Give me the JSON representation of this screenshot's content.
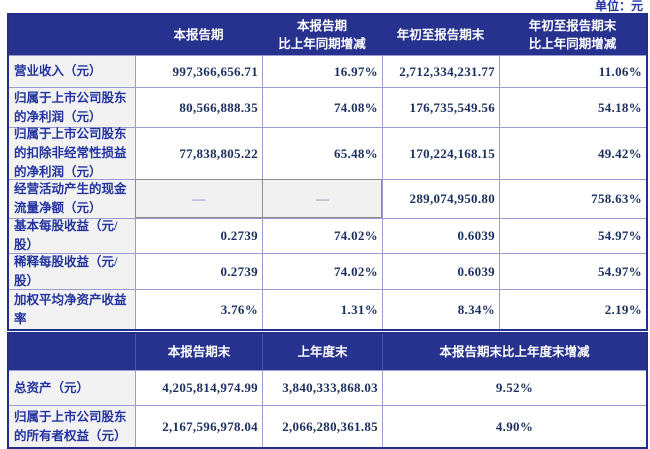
{
  "unit_label": "单位：元",
  "colors": {
    "header_bg": "#26328e",
    "header_text": "#ffffff",
    "label_bg": "#f2f2f2",
    "label_text": "#2334a0",
    "value_text": "#1b2f5e",
    "inner_border": "#9b9bd0",
    "outer_border": "#23308a",
    "muted_cell_bg": "#f1f1f1",
    "muted_dash": "#9094ce"
  },
  "table1": {
    "headers": {
      "col1": "",
      "col2": "本报告期",
      "col3": "本报告期\n比上年同期增减",
      "col4": "年初至报告期末",
      "col5": "年初至报告期末\n比上年同期增减"
    },
    "rows": [
      {
        "label": "营业收入（元）",
        "v1": "997,366,656.71",
        "v2": "16.97%",
        "v3": "2,712,334,231.77",
        "v4": "11.06%"
      },
      {
        "label": "归属于上市公司股东的净利润（元）",
        "v1": "80,566,888.35",
        "v2": "74.08%",
        "v3": "176,735,549.56",
        "v4": "54.18%"
      },
      {
        "label": "归属于上市公司股东的扣除非经常性损益的净利润（元）",
        "v1": "77,838,805.22",
        "v2": "65.48%",
        "v3": "170,224,168.15",
        "v4": "49.42%"
      },
      {
        "label": "经营活动产生的现金流量净额（元）",
        "v1": "—",
        "v2": "—",
        "v3": "289,074,950.80",
        "v4": "758.63%"
      },
      {
        "label": "基本每股收益（元/股）",
        "v1": "0.2739",
        "v2": "74.02%",
        "v3": "0.6039",
        "v4": "54.97%"
      },
      {
        "label": "稀释每股收益（元/股）",
        "v1": "0.2739",
        "v2": "74.02%",
        "v3": "0.6039",
        "v4": "54.97%"
      },
      {
        "label": "加权平均净资产收益率",
        "v1": "3.76%",
        "v2": "1.31%",
        "v3": "8.34%",
        "v4": "2.19%"
      }
    ]
  },
  "table2": {
    "headers": {
      "col1": "",
      "col2": "本报告期末",
      "col3": "上年度末",
      "col4": "本报告期末比上年度末增减"
    },
    "rows": [
      {
        "label": "总资产（元）",
        "v1": "4,205,814,974.99",
        "v2": "3,840,333,868.03",
        "v3": "9.52%"
      },
      {
        "label": "归属于上市公司股东的所有者权益（元）",
        "v1": "2,167,596,978.04",
        "v2": "2,066,280,361.85",
        "v3": "4.90%"
      }
    ]
  }
}
